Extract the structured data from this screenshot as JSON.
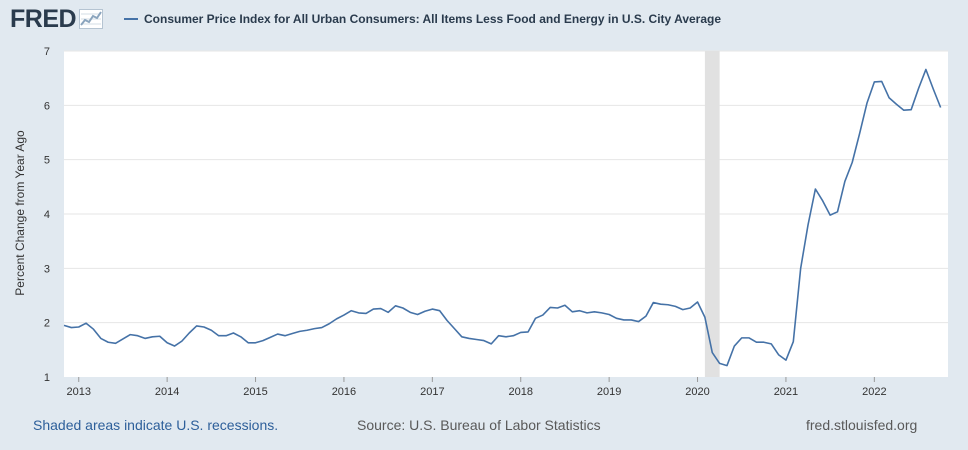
{
  "header": {
    "logo_text": "FRED",
    "legend_label": "Consumer Price Index for All Urban Consumers: All Items Less Food and Energy in U.S. City Average"
  },
  "footer": {
    "recession_note": "Shaded areas indicate U.S. recessions.",
    "source": "Source: U.S. Bureau of Labor Statistics",
    "url": "fred.stlouisfed.org"
  },
  "colors": {
    "background": "#e1e9f0",
    "plot_background": "#ffffff",
    "series_line": "#4572a7",
    "recession_shade": "#e1e1e1",
    "gridline": "#e6e6e6"
  },
  "chart_data": {
    "type": "line",
    "title": "Consumer Price Index for All Urban Consumers: All Items Less Food and Energy in U.S. City Average",
    "xlabel": "",
    "ylabel": "Percent Change from Year Ago",
    "ylim": [
      1,
      7
    ],
    "yticks": [
      1,
      2,
      3,
      4,
      5,
      6,
      7
    ],
    "xlim": [
      2012.8333,
      2022.8333
    ],
    "xticks": [
      2013,
      2014,
      2015,
      2016,
      2017,
      2018,
      2019,
      2020,
      2021,
      2022
    ],
    "grid": "horizontal",
    "recessions": [
      {
        "start": 2020.0833,
        "end": 2020.25
      }
    ],
    "series": [
      {
        "name": "Consumer Price Index for All Urban Consumers: All Items Less Food and Energy in U.S. City Average",
        "start": 2012.8333,
        "step": 0.083333,
        "values": [
          1.95,
          1.91,
          1.92,
          1.99,
          1.88,
          1.71,
          1.64,
          1.62,
          1.7,
          1.78,
          1.76,
          1.71,
          1.74,
          1.75,
          1.63,
          1.57,
          1.66,
          1.81,
          1.94,
          1.92,
          1.86,
          1.76,
          1.76,
          1.81,
          1.74,
          1.63,
          1.63,
          1.67,
          1.73,
          1.79,
          1.76,
          1.8,
          1.84,
          1.86,
          1.89,
          1.91,
          1.98,
          2.07,
          2.14,
          2.22,
          2.18,
          2.17,
          2.25,
          2.26,
          2.19,
          2.31,
          2.27,
          2.19,
          2.15,
          2.21,
          2.25,
          2.22,
          2.04,
          1.89,
          1.74,
          1.71,
          1.69,
          1.67,
          1.61,
          1.76,
          1.74,
          1.76,
          1.82,
          1.83,
          2.08,
          2.14,
          2.28,
          2.27,
          2.32,
          2.2,
          2.22,
          2.18,
          2.2,
          2.18,
          2.15,
          2.08,
          2.05,
          2.05,
          2.02,
          2.12,
          2.37,
          2.34,
          2.33,
          2.3,
          2.24,
          2.27,
          2.38,
          2.1,
          1.45,
          1.25,
          1.21,
          1.57,
          1.72,
          1.72,
          1.64,
          1.64,
          1.61,
          1.41,
          1.31,
          1.65,
          3.0,
          3.8,
          4.46,
          4.24,
          3.98,
          4.04,
          4.6,
          4.95,
          5.48,
          6.04,
          6.43,
          6.44,
          6.14,
          6.02,
          5.91,
          5.92,
          6.31,
          6.66,
          6.3,
          5.96
        ]
      }
    ]
  }
}
